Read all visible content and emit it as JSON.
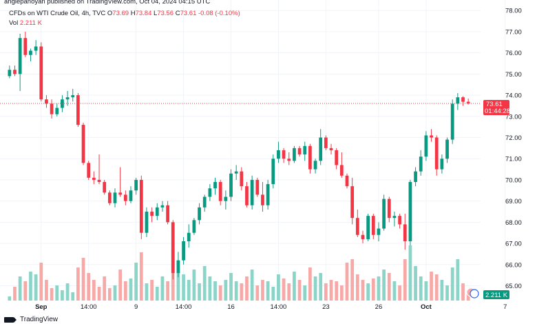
{
  "header": {
    "published_text": "angiepanoyan published on TradingView.com, Oct 04, 2024 04:15 UTC"
  },
  "legend": {
    "symbol": "CFDs on WTI Crude Oil, 4h, TVC",
    "o_label": "O",
    "o_value": "73.69",
    "h_label": "H",
    "h_value": "73.84",
    "l_label": "L",
    "l_value": "73.56",
    "c_label": "C",
    "c_value": "73.61",
    "change": "-0.08 (-0.10%)"
  },
  "volume_legend": {
    "label": "Vol",
    "value": "2.211 K"
  },
  "price_label": {
    "price": "73.61",
    "countdown": "01:44:28"
  },
  "volume_badge": "2.211 K",
  "brand": "TradingView",
  "colors": {
    "up": "#089981",
    "down": "#f23645",
    "vol_up": "#8bd4c8",
    "vol_down": "#f7a9a7",
    "grid": "#f0f3fa",
    "axis_text": "#131722"
  },
  "chart_data": {
    "type": "candlestick",
    "y_ticks": [
      "78.00",
      "77.00",
      "76.00",
      "75.00",
      "74.00",
      "73.00",
      "72.00",
      "71.00",
      "70.00",
      "69.00",
      "68.00",
      "67.00",
      "66.00",
      "65.00"
    ],
    "ylim": [
      64.3,
      78.3
    ],
    "x_ticks": [
      {
        "label": "Sep",
        "i": 6,
        "bold": true
      },
      {
        "label": "14:00",
        "i": 15
      },
      {
        "label": "9",
        "i": 24
      },
      {
        "label": "14:00",
        "i": 33
      },
      {
        "label": "16",
        "i": 42
      },
      {
        "label": "14:00",
        "i": 51
      },
      {
        "label": "23",
        "i": 60
      },
      {
        "label": "26",
        "i": 70
      },
      {
        "label": "Oct",
        "i": 79,
        "bold": true
      },
      {
        "label": "7",
        "i": 94
      }
    ],
    "candles": [
      {
        "o": 74.9,
        "h": 75.4,
        "l": 74.8,
        "c": 75.2
      },
      {
        "o": 75.2,
        "h": 75.4,
        "l": 74.9,
        "c": 75.0
      },
      {
        "o": 75.0,
        "h": 76.9,
        "l": 74.2,
        "c": 76.7
      },
      {
        "o": 76.7,
        "h": 77.0,
        "l": 75.8,
        "c": 75.9
      },
      {
        "o": 75.9,
        "h": 76.2,
        "l": 75.6,
        "c": 76.1
      },
      {
        "o": 76.1,
        "h": 76.6,
        "l": 75.9,
        "c": 76.3
      },
      {
        "o": 76.3,
        "h": 76.5,
        "l": 73.7,
        "c": 73.8
      },
      {
        "o": 73.8,
        "h": 74.0,
        "l": 73.4,
        "c": 73.6
      },
      {
        "o": 73.6,
        "h": 73.8,
        "l": 72.9,
        "c": 73.1
      },
      {
        "o": 73.1,
        "h": 73.6,
        "l": 73.0,
        "c": 73.4
      },
      {
        "o": 73.4,
        "h": 74.0,
        "l": 73.2,
        "c": 73.8
      },
      {
        "o": 73.8,
        "h": 74.2,
        "l": 73.5,
        "c": 73.9
      },
      {
        "o": 73.9,
        "h": 74.3,
        "l": 73.7,
        "c": 74.0
      },
      {
        "o": 74.0,
        "h": 74.1,
        "l": 72.5,
        "c": 72.6
      },
      {
        "o": 72.6,
        "h": 72.7,
        "l": 70.7,
        "c": 70.8
      },
      {
        "o": 70.8,
        "h": 70.9,
        "l": 70.0,
        "c": 70.1
      },
      {
        "o": 70.1,
        "h": 70.4,
        "l": 69.8,
        "c": 70.0
      },
      {
        "o": 70.0,
        "h": 71.2,
        "l": 69.8,
        "c": 69.9
      },
      {
        "o": 69.9,
        "h": 70.0,
        "l": 69.3,
        "c": 69.4
      },
      {
        "o": 69.4,
        "h": 69.5,
        "l": 68.8,
        "c": 68.9
      },
      {
        "o": 68.9,
        "h": 69.6,
        "l": 68.7,
        "c": 69.4
      },
      {
        "o": 69.4,
        "h": 70.6,
        "l": 69.2,
        "c": 69.3
      },
      {
        "o": 69.3,
        "h": 69.5,
        "l": 68.8,
        "c": 69.0
      },
      {
        "o": 69.0,
        "h": 69.7,
        "l": 68.9,
        "c": 69.5
      },
      {
        "o": 69.5,
        "h": 70.1,
        "l": 69.3,
        "c": 70.0
      },
      {
        "o": 70.0,
        "h": 70.2,
        "l": 67.2,
        "c": 67.5
      },
      {
        "o": 67.5,
        "h": 68.7,
        "l": 67.3,
        "c": 68.5
      },
      {
        "o": 68.5,
        "h": 68.7,
        "l": 68.0,
        "c": 68.3
      },
      {
        "o": 68.3,
        "h": 68.9,
        "l": 68.1,
        "c": 68.7
      },
      {
        "o": 68.7,
        "h": 69.0,
        "l": 68.5,
        "c": 68.8
      },
      {
        "o": 68.8,
        "h": 69.0,
        "l": 67.9,
        "c": 68.0
      },
      {
        "o": 68.0,
        "h": 68.1,
        "l": 65.3,
        "c": 65.6
      },
      {
        "o": 65.6,
        "h": 66.6,
        "l": 65.4,
        "c": 66.2
      },
      {
        "o": 66.2,
        "h": 67.3,
        "l": 66.0,
        "c": 67.1
      },
      {
        "o": 67.1,
        "h": 67.9,
        "l": 66.8,
        "c": 67.5
      },
      {
        "o": 67.5,
        "h": 68.2,
        "l": 67.4,
        "c": 68.1
      },
      {
        "o": 68.1,
        "h": 68.9,
        "l": 67.9,
        "c": 68.7
      },
      {
        "o": 68.7,
        "h": 69.3,
        "l": 68.5,
        "c": 69.2
      },
      {
        "o": 69.2,
        "h": 69.8,
        "l": 69.0,
        "c": 69.6
      },
      {
        "o": 69.6,
        "h": 70.1,
        "l": 69.3,
        "c": 69.9
      },
      {
        "o": 69.9,
        "h": 70.0,
        "l": 68.8,
        "c": 69.0
      },
      {
        "o": 69.0,
        "h": 69.5,
        "l": 68.6,
        "c": 69.2
      },
      {
        "o": 69.2,
        "h": 70.5,
        "l": 69.0,
        "c": 70.3
      },
      {
        "o": 70.3,
        "h": 70.7,
        "l": 70.0,
        "c": 70.4
      },
      {
        "o": 70.4,
        "h": 70.6,
        "l": 69.5,
        "c": 69.7
      },
      {
        "o": 69.7,
        "h": 69.9,
        "l": 68.7,
        "c": 68.8
      },
      {
        "o": 68.8,
        "h": 70.2,
        "l": 68.6,
        "c": 70.0
      },
      {
        "o": 70.0,
        "h": 70.1,
        "l": 69.2,
        "c": 69.3
      },
      {
        "o": 69.3,
        "h": 69.9,
        "l": 68.5,
        "c": 68.8
      },
      {
        "o": 68.8,
        "h": 70.0,
        "l": 68.6,
        "c": 69.8
      },
      {
        "o": 69.8,
        "h": 71.2,
        "l": 69.6,
        "c": 71.0
      },
      {
        "o": 71.0,
        "h": 71.8,
        "l": 70.8,
        "c": 71.4
      },
      {
        "o": 71.4,
        "h": 71.5,
        "l": 70.8,
        "c": 71.0
      },
      {
        "o": 71.0,
        "h": 71.3,
        "l": 70.7,
        "c": 70.9
      },
      {
        "o": 70.9,
        "h": 71.6,
        "l": 70.8,
        "c": 71.5
      },
      {
        "o": 71.5,
        "h": 71.6,
        "l": 71.1,
        "c": 71.2
      },
      {
        "o": 71.2,
        "h": 71.8,
        "l": 70.9,
        "c": 71.6
      },
      {
        "o": 71.6,
        "h": 71.7,
        "l": 70.3,
        "c": 70.5
      },
      {
        "o": 70.5,
        "h": 71.0,
        "l": 70.3,
        "c": 70.9
      },
      {
        "o": 70.9,
        "h": 72.4,
        "l": 70.7,
        "c": 72.0
      },
      {
        "o": 72.0,
        "h": 72.1,
        "l": 71.4,
        "c": 71.5
      },
      {
        "o": 71.5,
        "h": 71.7,
        "l": 71.2,
        "c": 71.4
      },
      {
        "o": 71.4,
        "h": 71.5,
        "l": 70.5,
        "c": 70.7
      },
      {
        "o": 70.7,
        "h": 71.3,
        "l": 70.1,
        "c": 70.2
      },
      {
        "o": 70.2,
        "h": 70.3,
        "l": 69.6,
        "c": 69.7
      },
      {
        "o": 69.7,
        "h": 70.1,
        "l": 67.9,
        "c": 68.2
      },
      {
        "o": 68.2,
        "h": 68.6,
        "l": 67.3,
        "c": 67.4
      },
      {
        "o": 67.4,
        "h": 67.6,
        "l": 67.0,
        "c": 67.2
      },
      {
        "o": 67.2,
        "h": 68.4,
        "l": 67.1,
        "c": 68.3
      },
      {
        "o": 68.3,
        "h": 68.4,
        "l": 67.2,
        "c": 67.4
      },
      {
        "o": 67.4,
        "h": 68.0,
        "l": 67.1,
        "c": 67.7
      },
      {
        "o": 67.7,
        "h": 69.3,
        "l": 67.6,
        "c": 69.1
      },
      {
        "o": 69.1,
        "h": 69.2,
        "l": 68.0,
        "c": 68.2
      },
      {
        "o": 68.2,
        "h": 68.5,
        "l": 67.8,
        "c": 68.3
      },
      {
        "o": 68.3,
        "h": 68.4,
        "l": 67.7,
        "c": 67.9
      },
      {
        "o": 67.9,
        "h": 68.4,
        "l": 66.7,
        "c": 67.1
      },
      {
        "o": 67.1,
        "h": 70.0,
        "l": 66.9,
        "c": 69.9
      },
      {
        "o": 69.9,
        "h": 70.6,
        "l": 69.7,
        "c": 70.4
      },
      {
        "o": 70.4,
        "h": 71.4,
        "l": 70.2,
        "c": 71.1
      },
      {
        "o": 71.1,
        "h": 72.3,
        "l": 70.9,
        "c": 72.1
      },
      {
        "o": 72.1,
        "h": 72.4,
        "l": 71.8,
        "c": 72.0
      },
      {
        "o": 72.0,
        "h": 72.1,
        "l": 70.2,
        "c": 70.5
      },
      {
        "o": 70.5,
        "h": 71.2,
        "l": 70.3,
        "c": 71.0
      },
      {
        "o": 71.0,
        "h": 72.0,
        "l": 70.8,
        "c": 71.9
      },
      {
        "o": 71.9,
        "h": 73.8,
        "l": 71.7,
        "c": 73.6
      },
      {
        "o": 73.6,
        "h": 74.1,
        "l": 73.3,
        "c": 73.9
      },
      {
        "o": 73.9,
        "h": 73.95,
        "l": 73.5,
        "c": 73.69
      },
      {
        "o": 73.69,
        "h": 73.84,
        "l": 73.56,
        "c": 73.61
      }
    ],
    "volumes": [
      6,
      20,
      35,
      28,
      42,
      38,
      55,
      30,
      18,
      22,
      15,
      25,
      12,
      48,
      62,
      40,
      30,
      20,
      35,
      18,
      22,
      45,
      28,
      32,
      55,
      70,
      25,
      30,
      20,
      35,
      28,
      75,
      42,
      38,
      30,
      45,
      25,
      50,
      35,
      28,
      22,
      30,
      40,
      28,
      25,
      35,
      45,
      22,
      30,
      28,
      20,
      38,
      32,
      25,
      42,
      30,
      22,
      48,
      35,
      40,
      25,
      30,
      28,
      22,
      55,
      60,
      38,
      30,
      25,
      32,
      35,
      45,
      40,
      28,
      22,
      60,
      80,
      50,
      35,
      28,
      42,
      38,
      30,
      22,
      48,
      60,
      25,
      15
    ]
  }
}
